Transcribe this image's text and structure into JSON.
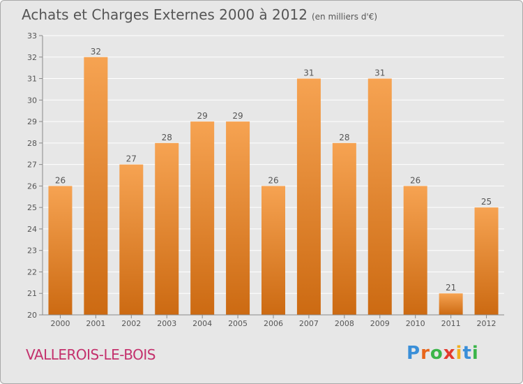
{
  "title": "Achats et Charges Externes 2000 à 2012",
  "subtitle": "(en milliers d'€)",
  "commune": "VALLEROIS-LE-BOIS",
  "logo_text": "Proxiti",
  "colors": {
    "bar_top": "#f6a352",
    "bar_bottom": "#cc6a12",
    "title": "#555555",
    "commune": "#c4306c",
    "background": "#e7e7e7"
  },
  "chart_data": {
    "type": "bar",
    "categories": [
      "2000",
      "2001",
      "2002",
      "2003",
      "2004",
      "2005",
      "2006",
      "2007",
      "2008",
      "2009",
      "2010",
      "2011",
      "2012"
    ],
    "values": [
      26,
      32,
      27,
      28,
      29,
      29,
      26,
      31,
      28,
      31,
      26,
      21,
      25
    ],
    "ylim": [
      20,
      33
    ],
    "yticks": [
      20,
      21,
      22,
      23,
      24,
      25,
      26,
      27,
      28,
      29,
      30,
      31,
      32,
      33
    ],
    "grid": true,
    "data_labels": true
  }
}
